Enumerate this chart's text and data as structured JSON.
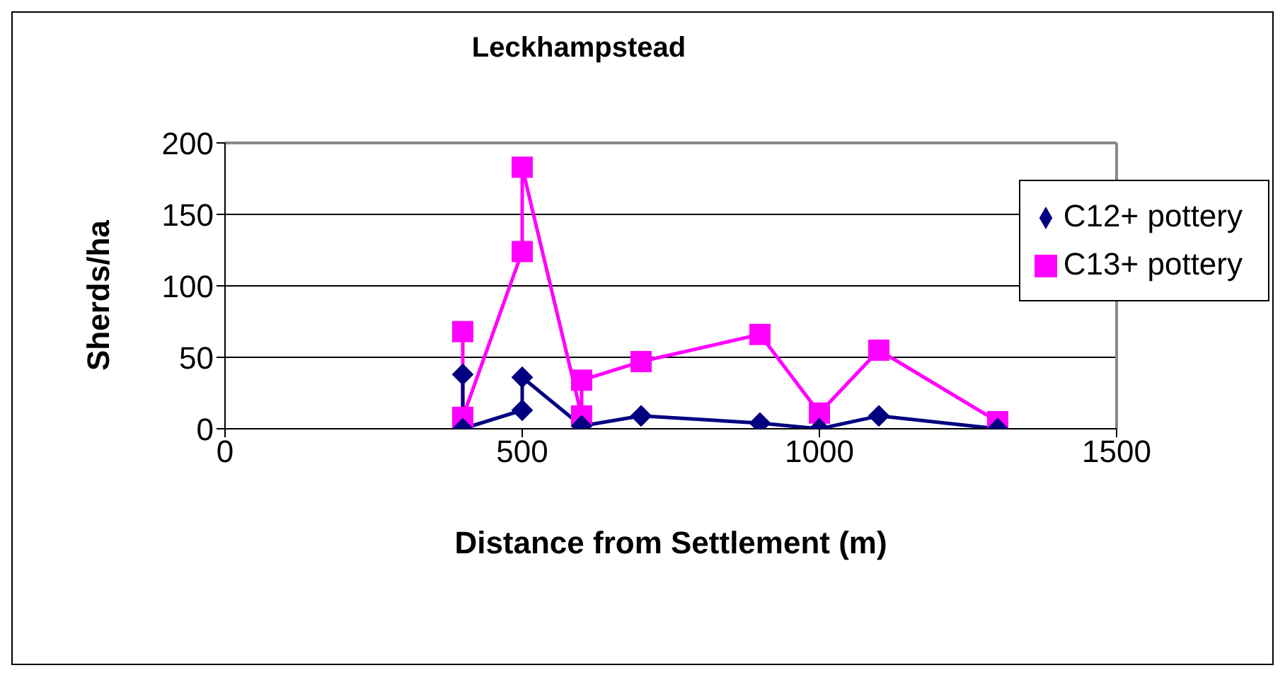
{
  "chart_data": {
    "type": "line",
    "title": "Leckhampstead",
    "xlabel": "Distance from Settlement (m)",
    "ylabel": "Sherds/ha",
    "xlim": [
      0,
      1500
    ],
    "xticks": [
      0,
      500,
      1000,
      1500
    ],
    "ylim": [
      0,
      200
    ],
    "yticks": [
      0,
      50,
      100,
      150,
      200
    ],
    "grid": "y",
    "legend": "top right",
    "series": [
      {
        "name": "C12+ pottery",
        "color": "#000080",
        "marker": "diamond",
        "x": [
          400,
          400,
          500,
          500,
          600,
          700,
          900,
          1000,
          1100,
          1300
        ],
        "values": [
          38,
          0,
          13,
          36,
          2,
          9,
          4,
          0,
          9,
          0
        ]
      },
      {
        "name": "C13+ pottery",
        "color": "#ff00ff",
        "marker": "square",
        "x": [
          400,
          400,
          500,
          500,
          600,
          600,
          700,
          900,
          1000,
          1100,
          1300
        ],
        "values": [
          68,
          8,
          124,
          183,
          9,
          34,
          47,
          66,
          11,
          55,
          5
        ]
      }
    ]
  }
}
